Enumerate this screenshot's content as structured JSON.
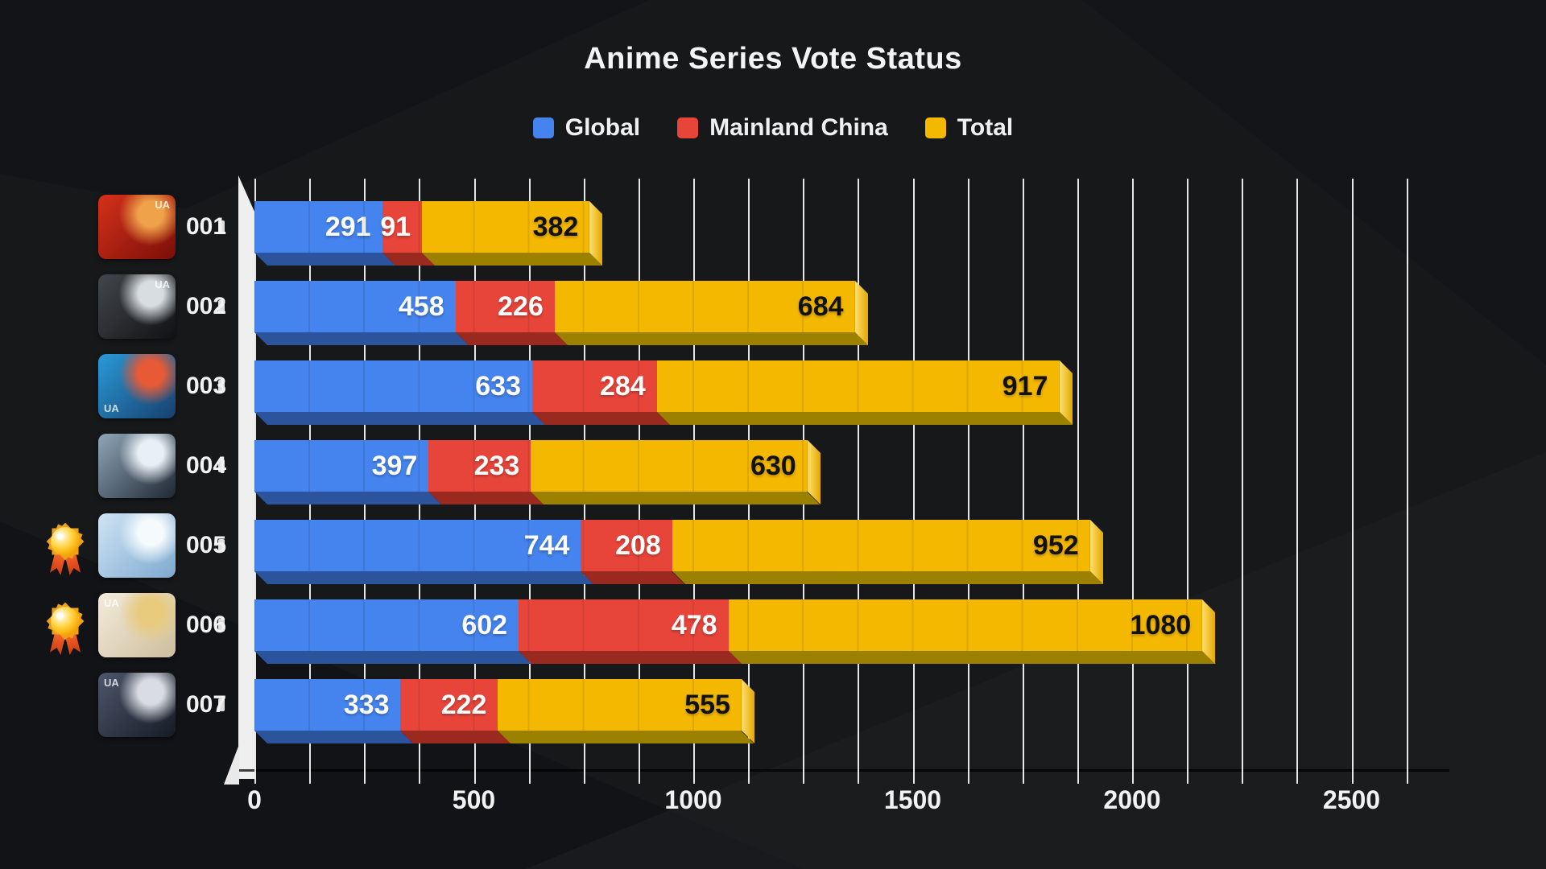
{
  "title": "Anime Series Vote Status",
  "watermark_text": "UA",
  "medal_icon": "gold-rosette-medal-icon",
  "colors": {
    "background": "#17181a",
    "grid": "#f8f8f8",
    "axis_spine": "#efefef",
    "title_text": "#f4f4f4"
  },
  "chart_data": {
    "type": "bar",
    "orientation": "horizontal",
    "stacked": true,
    "title": "Anime Series Vote Status",
    "categories": [
      "001",
      "002",
      "003",
      "004",
      "005",
      "006",
      "007"
    ],
    "series": [
      {
        "name": "Global",
        "color": "#4584EE",
        "shade": "#2B549C",
        "value_color": "#ffffff",
        "values": [
          291,
          458,
          633,
          397,
          744,
          602,
          333
        ]
      },
      {
        "name": "Mainland China",
        "color": "#E8453A",
        "shade": "#9A2A20",
        "value_color": "#ffffff",
        "values": [
          91,
          226,
          284,
          233,
          208,
          478,
          222
        ]
      },
      {
        "name": "Total",
        "color": "#F4B800",
        "shade": "#9C8000",
        "value_color": "#111111",
        "cap_light": "#FFDE6E",
        "cap_dark": "#E2A800",
        "values": [
          382,
          684,
          917,
          630,
          952,
          1080,
          555
        ]
      }
    ],
    "x_ticks": [
      0,
      500,
      1000,
      1500,
      2000,
      2500
    ],
    "xlim": [
      0,
      2625
    ],
    "gridline_step": 125,
    "grid": true,
    "legend_position": "top",
    "rows": [
      {
        "id": "001",
        "medal": false,
        "watermark": "tr",
        "thumb": {
          "c1": "#d5311a",
          "c2": "#7a0e08",
          "accent": "#f0a24a",
          "desc": "red samurai artwork"
        }
      },
      {
        "id": "002",
        "medal": false,
        "watermark": "tr",
        "thumb": {
          "c1": "#43474d",
          "c2": "#101113",
          "accent": "#d8dde2",
          "desc": "monochrome girl with moon"
        }
      },
      {
        "id": "003",
        "medal": false,
        "watermark": "bl",
        "thumb": {
          "c1": "#2a9ad8",
          "c2": "#173f6d",
          "accent": "#e85a35",
          "desc": "blue haired fighter with maple leaves"
        }
      },
      {
        "id": "004",
        "medal": false,
        "watermark": null,
        "thumb": {
          "c1": "#8fa6b8",
          "c2": "#1f2733",
          "accent": "#e9f0f5",
          "desc": "icy blue glacier scene"
        }
      },
      {
        "id": "005",
        "medal": true,
        "watermark": null,
        "thumb": {
          "c1": "#cfe4f4",
          "c2": "#7da9cf",
          "accent": "#f5fafd",
          "desc": "pale blue hooded figure with moon"
        }
      },
      {
        "id": "006",
        "medal": true,
        "watermark": "tl",
        "thumb": {
          "c1": "#f3ecdc",
          "c2": "#cdbd9c",
          "accent": "#e9cb7e",
          "desc": "blonde girl with sword"
        }
      },
      {
        "id": "007",
        "medal": false,
        "watermark": "tl",
        "thumb": {
          "c1": "#4d566b",
          "c2": "#161b25",
          "accent": "#d9dde3",
          "desc": "white haired mecha girl"
        }
      }
    ]
  }
}
